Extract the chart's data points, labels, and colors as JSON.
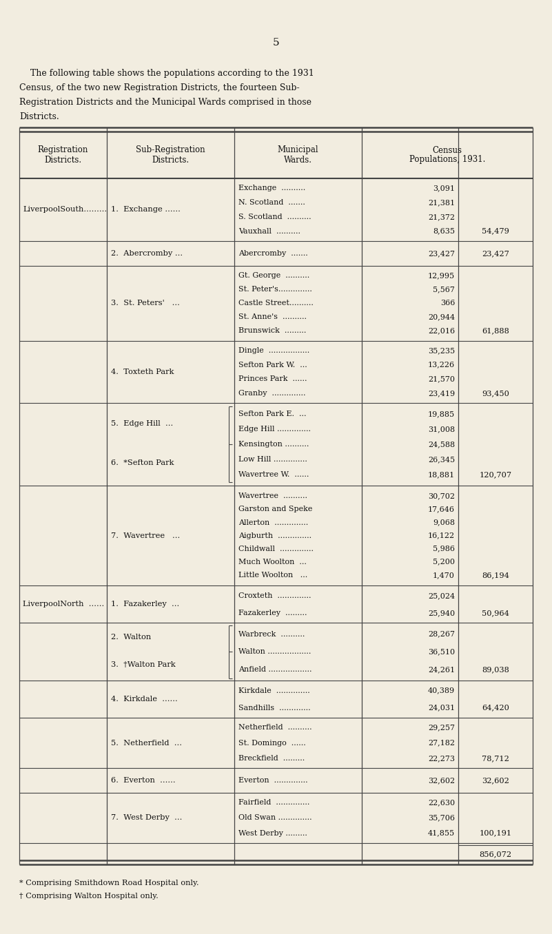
{
  "page_number": "5",
  "intro_text_lines": [
    "    The following table shows the populations according to the 1931",
    "Census, of the two new Registration Districts, the fourteen Sub-",
    "Registration Districts and the Municipal Wards comprised in those",
    "Districts."
  ],
  "col_headers_line1": [
    "Registration",
    "Sub-Registration",
    "Municipal",
    "Census"
  ],
  "col_headers_line2": [
    "Districts.",
    "Districts.",
    "Wards.",
    "Populations, 1931."
  ],
  "footnotes": [
    "* Comprising Smithdown Road Hospital only.",
    "† Comprising Walton Hospital only."
  ],
  "bg_color": "#f2ede0",
  "text_color": "#111111",
  "line_color": "#444444",
  "rows": [
    {
      "reg_dist": "LiverpoolSouth.........",
      "reg_dist_span": 6,
      "sub_dist": "1.  Exchange ......",
      "sub_dist_line": 0,
      "sub_dist_span": 1,
      "wards": [
        "Exchange  ..........",
        "N. Scotland  .......",
        "S. Scotland  ..........",
        "Vauxhall  .........."
      ],
      "ward_pops": [
        "3,091",
        "21,381",
        "21,372",
        "8,635"
      ],
      "sub_total": "54,479",
      "sub_total_at_ward": 3,
      "bracket": false
    },
    {
      "reg_dist": "",
      "sub_dist": "2.  Abercromby ...",
      "sub_dist_line": 0,
      "sub_dist_span": 1,
      "wards": [
        "Abercromby  ......."
      ],
      "ward_pops": [
        "23,427"
      ],
      "sub_total": "23,427",
      "sub_total_at_ward": 0,
      "bracket": false
    },
    {
      "reg_dist": "",
      "sub_dist": "3.  St. Peters'   ...",
      "sub_dist_line": 0,
      "sub_dist_span": 1,
      "wards": [
        "Gt. George  ..........",
        "St. Peter's..............",
        "Castle Street..........",
        "St. Anne's  ..........",
        "Brunswick  ........."
      ],
      "ward_pops": [
        "12,995",
        "5,567",
        "366",
        "20,944",
        "22,016"
      ],
      "sub_total": "61,888",
      "sub_total_at_ward": 4,
      "bracket": false
    },
    {
      "reg_dist": "",
      "sub_dist": "4.  Toxteth Park",
      "sub_dist_line": 0,
      "sub_dist_span": 1,
      "wards": [
        "Dingle  .................",
        "Sefton Park W.  ...",
        "Princes Park  ......",
        "Granby  .............."
      ],
      "ward_pops": [
        "35,235",
        "13,226",
        "21,570",
        "23,419"
      ],
      "sub_total": "93,450",
      "sub_total_at_ward": 3,
      "bracket": false
    },
    {
      "reg_dist": "",
      "sub_dist_line1": "5.  Edge Hill  ...",
      "sub_dist_line2": "6.  *Sefton Park",
      "sub_dist_line": 0,
      "sub_dist_span": 2,
      "wards": [
        "Sefton Park E.  ...",
        "Edge Hill ..............",
        "Kensington ..........",
        "Low Hill ..............",
        "Wavertree W.  ......"
      ],
      "ward_pops": [
        "19,885",
        "31,008",
        "24,588",
        "26,345",
        "18,881"
      ],
      "sub_total": "120,707",
      "sub_total_at_ward": 4,
      "bracket": true
    },
    {
      "reg_dist": "",
      "sub_dist": "7.  Wavertree   ...",
      "sub_dist_line": 0,
      "sub_dist_span": 1,
      "wards": [
        "Wavertree  ..........",
        "Garston and Speke",
        "Allerton  ..............",
        "Aigburth  ..............",
        "Childwall  ..............",
        "Much Woolton  ...",
        "Little Woolton   ..."
      ],
      "ward_pops": [
        "30,702",
        "17,646",
        "9,068",
        "16,122",
        "5,986",
        "5,200",
        "1,470"
      ],
      "sub_total": "86,194",
      "sub_total_at_ward": 6,
      "bracket": false
    },
    {
      "reg_dist": "LiverpoolNorth  ......",
      "reg_dist_span": 7,
      "sub_dist": "1.  Fazakerley  ...",
      "sub_dist_line": 0,
      "sub_dist_span": 1,
      "wards": [
        "Croxteth  ..............",
        "Fazakerley  ........."
      ],
      "ward_pops": [
        "25,024",
        "25,940"
      ],
      "sub_total": "50,964",
      "sub_total_at_ward": 1,
      "bracket": false
    },
    {
      "reg_dist": "",
      "sub_dist_line1": "2.  Walton",
      "sub_dist_line2": "3.  †Walton Park",
      "sub_dist_line": 0,
      "sub_dist_span": 2,
      "wards": [
        "Warbreck  ..........",
        "Walton ..................",
        "Anfield .................."
      ],
      "ward_pops": [
        "28,267",
        "36,510",
        "24,261"
      ],
      "sub_total": "89,038",
      "sub_total_at_ward": 2,
      "bracket": true
    },
    {
      "reg_dist": "",
      "sub_dist": "4.  Kirkdale  ......",
      "sub_dist_line": 0,
      "sub_dist_span": 1,
      "wards": [
        "Kirkdale  ..............",
        "Sandhills  ............."
      ],
      "ward_pops": [
        "40,389",
        "24,031"
      ],
      "sub_total": "64,420",
      "sub_total_at_ward": 1,
      "bracket": false
    },
    {
      "reg_dist": "",
      "sub_dist": "5.  Netherfield  ...",
      "sub_dist_line": 0,
      "sub_dist_span": 1,
      "wards": [
        "Netherfield  ..........",
        "St. Domingo  ......",
        "Breckfield  ........."
      ],
      "ward_pops": [
        "29,257",
        "27,182",
        "22,273"
      ],
      "sub_total": "78,712",
      "sub_total_at_ward": 2,
      "bracket": false
    },
    {
      "reg_dist": "",
      "sub_dist": "6.  Everton  ......",
      "sub_dist_line": 0,
      "sub_dist_span": 1,
      "wards": [
        "Everton  .............."
      ],
      "ward_pops": [
        "32,602"
      ],
      "sub_total": "32,602",
      "sub_total_at_ward": 0,
      "bracket": false
    },
    {
      "reg_dist": "",
      "sub_dist": "7.  West Derby  ...",
      "sub_dist_line": 0,
      "sub_dist_span": 1,
      "wards": [
        "Fairfield  ..............",
        "Old Swan ..............",
        "West Derby ........."
      ],
      "ward_pops": [
        "22,630",
        "35,706",
        "41,855"
      ],
      "sub_total": "100,191",
      "sub_total_at_ward": 2,
      "bracket": false
    },
    {
      "reg_dist": "",
      "sub_dist": "",
      "wards": [],
      "ward_pops": [],
      "sub_total": "856,072",
      "sub_total_at_ward": 0,
      "bracket": false,
      "grand_total": true
    }
  ]
}
